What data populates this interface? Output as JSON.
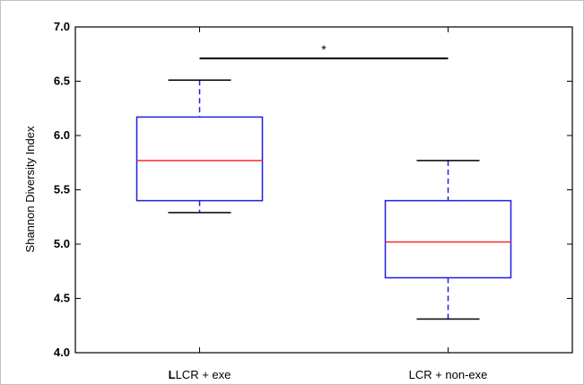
{
  "chart_data": {
    "type": "box",
    "title": "",
    "ylabel": "Shannon Diversity Index",
    "xlabel": "",
    "ylim": [
      4.0,
      7.0
    ],
    "yticks": [
      "4.0",
      "4.5",
      "5.0",
      "5.5",
      "6.0",
      "6.5",
      "7.0"
    ],
    "categories": [
      {
        "prefix": "L",
        "label": "LCR + exe"
      },
      {
        "prefix": "",
        "label": "LCR + non-exe"
      }
    ],
    "boxes": [
      {
        "whisker_low": 5.29,
        "q1": 5.4,
        "median": 5.77,
        "q3": 6.17,
        "whisker_high": 6.51
      },
      {
        "whisker_low": 4.31,
        "q1": 4.69,
        "median": 5.02,
        "q3": 5.4,
        "whisker_high": 5.77
      }
    ],
    "significance": {
      "symbol": "*",
      "y": 6.71,
      "from": 0,
      "to": 1
    },
    "colors": {
      "box": "#1f1fe0",
      "median": "#ff2a2a",
      "whisker": "#1f1fe0",
      "cap": "#000000",
      "bracket": "#000000"
    }
  }
}
